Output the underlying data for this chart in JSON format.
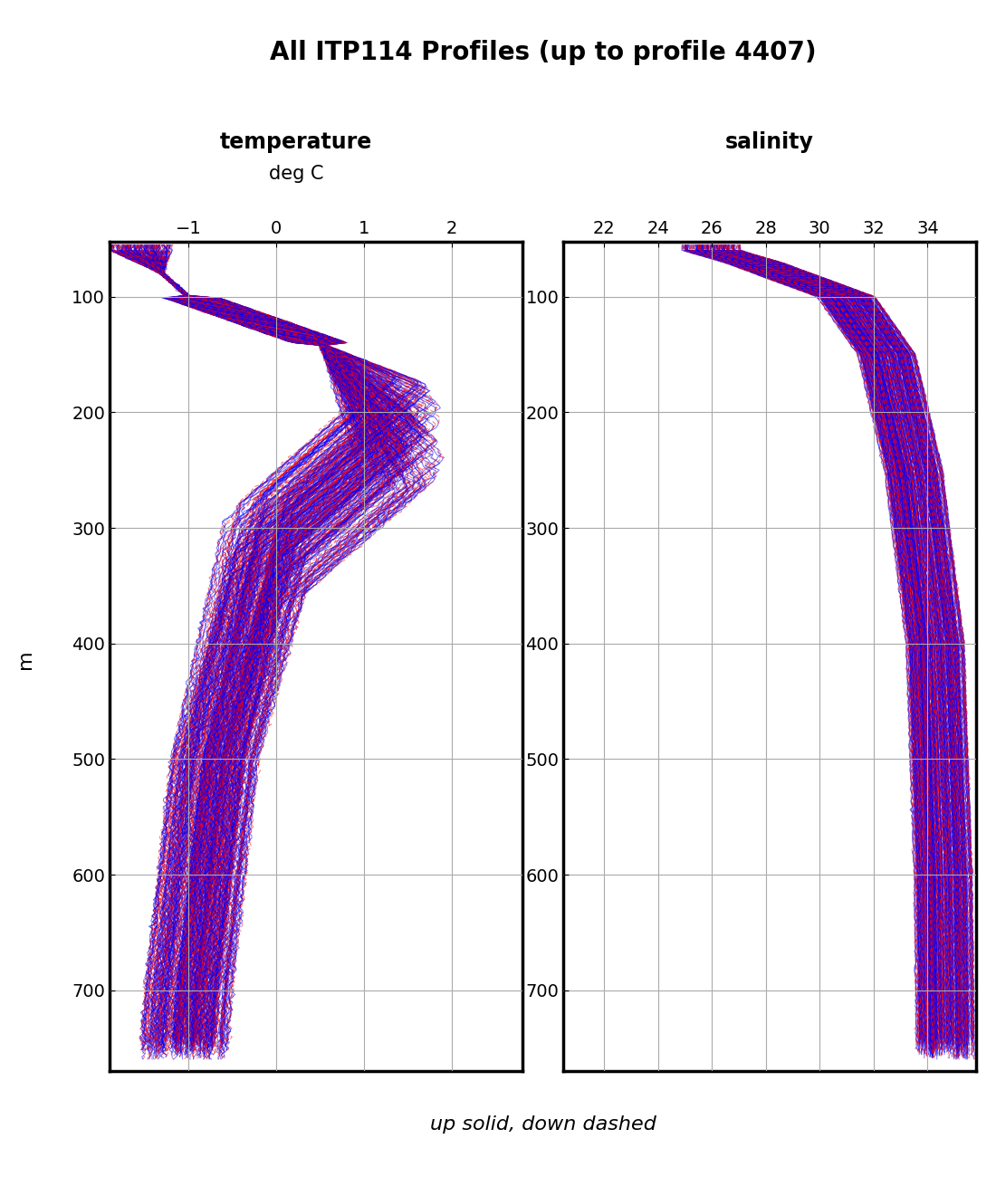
{
  "title": "All ITP114 Profiles (up to profile 4407)",
  "title_fontsize": 20,
  "title_fontweight": "bold",
  "subtitle_temp": "temperature",
  "subtitle_temp_sub": "deg C",
  "subtitle_sal": "salinity",
  "subtitle_fontsize": 17,
  "ylabel": "m",
  "ylabel_fontsize": 16,
  "footer": "up solid, down dashed",
  "footer_fontsize": 16,
  "footer_style": "italic",
  "temp_xlim": [
    -1.9,
    2.8
  ],
  "temp_xticks": [
    -1,
    0,
    1,
    2
  ],
  "sal_xlim": [
    20.5,
    35.8
  ],
  "sal_xticks": [
    22,
    24,
    26,
    28,
    30,
    32,
    34
  ],
  "ylim": [
    770,
    52
  ],
  "yticks": [
    100,
    200,
    300,
    400,
    500,
    600,
    700
  ],
  "blue_color": "#0000FF",
  "red_color": "#FF0000",
  "line_alpha": 0.55,
  "line_width": 0.7,
  "grid_color": "#aaaaaa",
  "grid_linewidth": 0.8,
  "n_profiles": 200,
  "depth_min": 55,
  "depth_max": 760,
  "background_color": "#ffffff"
}
